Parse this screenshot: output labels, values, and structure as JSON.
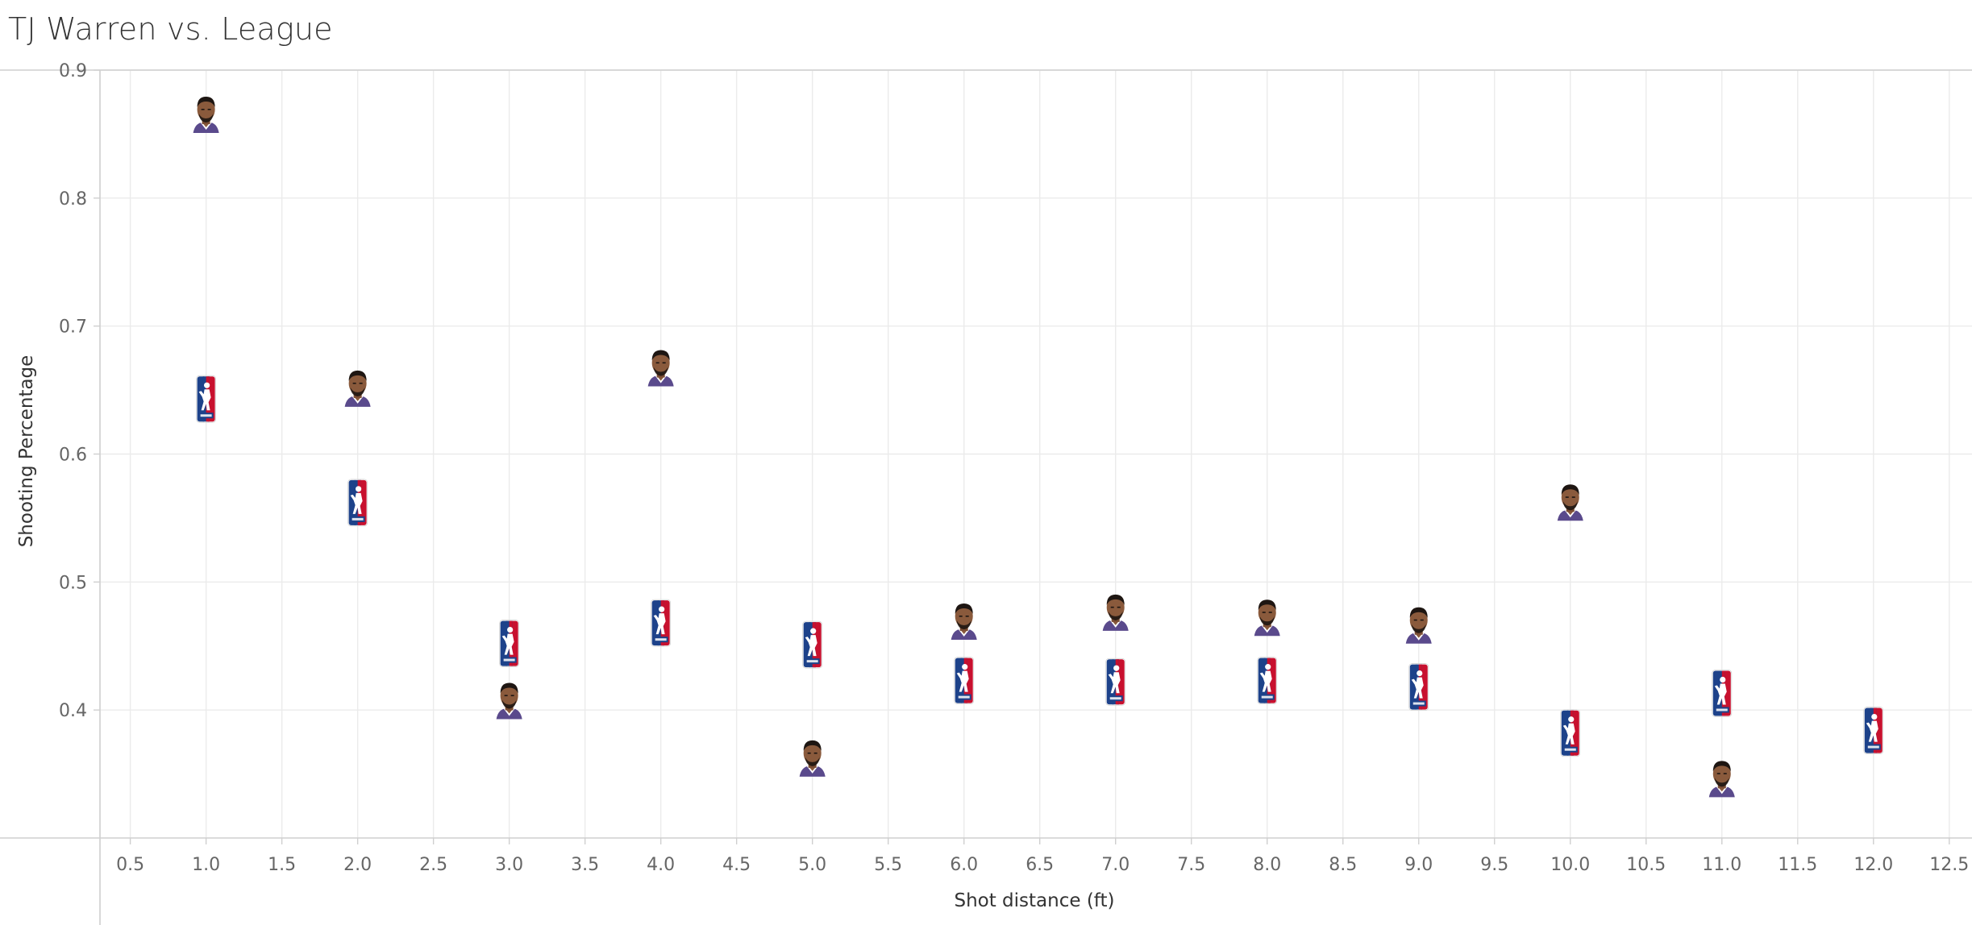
{
  "title": "TJ Warren vs. League",
  "chart_data": {
    "type": "scatter",
    "title": "TJ Warren vs. League",
    "xlabel": "Shot distance (ft)",
    "ylabel": "Shooting Percentage",
    "xlim": [
      0.3,
      12.65
    ],
    "ylim": [
      0.3,
      0.9
    ],
    "x_ticks": [
      "0.5",
      "1.0",
      "1.5",
      "2.0",
      "2.5",
      "3.0",
      "3.5",
      "4.0",
      "4.5",
      "5.0",
      "5.5",
      "6.0",
      "6.5",
      "7.0",
      "7.5",
      "8.0",
      "8.5",
      "9.0",
      "9.5",
      "10.0",
      "10.5",
      "11.0",
      "11.5",
      "12.0",
      "12.5"
    ],
    "y_ticks": [
      "0.4",
      "0.5",
      "0.6",
      "0.7",
      "0.8",
      "0.9"
    ],
    "grid": true,
    "series": [
      {
        "name": "TJ Warren",
        "marker": "player-headshot",
        "x": [
          1,
          2,
          3,
          4,
          5,
          6,
          7,
          8,
          9,
          10,
          11
        ],
        "y": [
          0.866,
          0.652,
          0.408,
          0.668,
          0.363,
          0.47,
          0.477,
          0.473,
          0.467,
          0.563,
          0.347
        ]
      },
      {
        "name": "League",
        "marker": "nba-logo",
        "x": [
          1,
          2,
          3,
          4,
          5,
          6,
          7,
          8,
          9,
          10,
          11,
          12
        ],
        "y": [
          0.643,
          0.562,
          0.452,
          0.468,
          0.451,
          0.423,
          0.422,
          0.423,
          0.418,
          0.382,
          0.413,
          0.384
        ]
      }
    ]
  },
  "colors": {
    "grid": "#ebebeb",
    "frame": "#cfcfcf",
    "tick": "#666666",
    "nba_blue": "#1d428a",
    "nba_red": "#c8102e",
    "skin": "#8a5a3c",
    "hair": "#1e1612",
    "jersey": "#5a4a8c"
  }
}
